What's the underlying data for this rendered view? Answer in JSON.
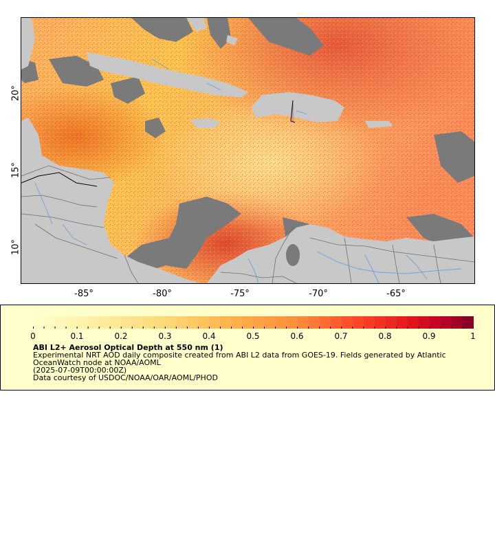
{
  "map": {
    "lon_labels": [
      "-85°",
      "-80°",
      "-75°",
      "-70°",
      "-65°"
    ],
    "lat_labels": [
      "20°",
      "15°",
      "10°"
    ],
    "colors": {
      "land": "#c8c8c8",
      "no_data": "#7a7a7a",
      "borders": "#6e6e6e",
      "rivers": "#6fa0d8",
      "aod_low": "#ffffcc",
      "aod_mid": "#fd8d3c",
      "aod_high": "#800026"
    }
  },
  "legend": {
    "colorbar_labels": [
      "0",
      "0.1",
      "0.2",
      "0.3",
      "0.4",
      "0.5",
      "0.6",
      "0.7",
      "0.8",
      "0.9",
      "1"
    ],
    "title": "ABI L2+ Aerosol Optical Depth at 550 nm (1)",
    "line1": "Experimental NRT AOD daily composite created from ABI L2 data from GOES-19. Fields generated by Atlantic OceanWatch node at NOAA/AOML",
    "line2": "(2025-07-09T00:00:00Z)",
    "line3": "Data courtesy of USDOC/NOAA/OAR/AOML/PHOD"
  }
}
